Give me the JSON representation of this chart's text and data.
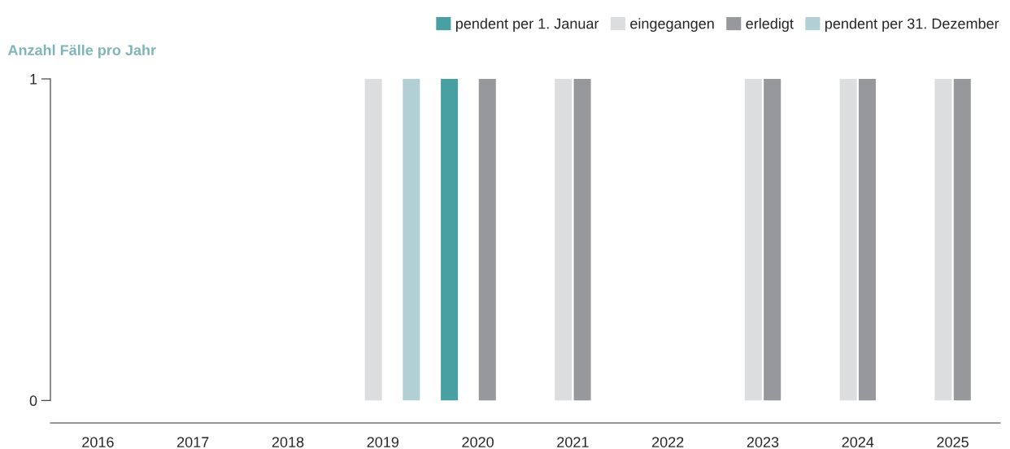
{
  "chart_data": {
    "type": "bar",
    "ylabel": "Anzahl Fälle pro Jahr",
    "categories": [
      "2016",
      "2017",
      "2018",
      "2019",
      "2020",
      "2021",
      "2022",
      "2023",
      "2024",
      "2025"
    ],
    "series": [
      {
        "name": "pendent per 1. Januar",
        "color": "#49a0a3",
        "values": [
          0,
          0,
          0,
          0,
          1,
          0,
          0,
          0,
          0,
          0
        ]
      },
      {
        "name": "eingegangen",
        "color": "#dcdddf",
        "values": [
          0,
          0,
          0,
          1,
          0,
          1,
          0,
          1,
          1,
          1
        ]
      },
      {
        "name": "erledigt",
        "color": "#97989c",
        "values": [
          0,
          0,
          0,
          0,
          1,
          1,
          0,
          1,
          1,
          1
        ]
      },
      {
        "name": "pendent per 31. Dezember",
        "color": "#b2cfd3",
        "values": [
          0,
          0,
          0,
          1,
          0,
          0,
          0,
          0,
          0,
          0
        ]
      }
    ],
    "ylim": [
      -0.07,
      1
    ],
    "yticks": [
      0,
      1
    ],
    "grid": false,
    "legend": "top right"
  }
}
